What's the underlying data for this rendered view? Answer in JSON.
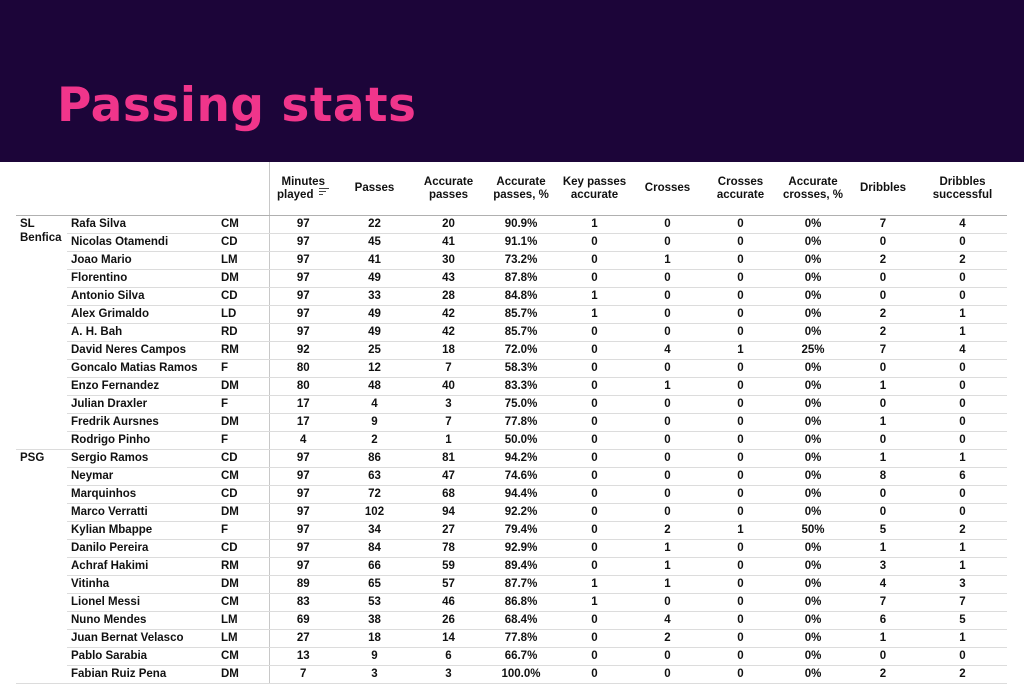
{
  "title": "Passing stats",
  "columns": [
    "Minutes played",
    "Passes",
    "Accurate passes",
    "Accurate passes, %",
    "Key passes accurate",
    "Crosses",
    "Crosses accurate",
    "Accurate crosses, %",
    "Dribbles",
    "Dribbles successful"
  ],
  "groups": [
    {
      "team": "SL Benfica",
      "rows": [
        {
          "player": "Rafa Silva",
          "pos": "CM",
          "stats": [
            "97",
            "22",
            "20",
            "90.9%",
            "1",
            "0",
            "0",
            "0%",
            "7",
            "4"
          ]
        },
        {
          "player": "Nicolas Otamendi",
          "pos": "CD",
          "stats": [
            "97",
            "45",
            "41",
            "91.1%",
            "0",
            "0",
            "0",
            "0%",
            "0",
            "0"
          ]
        },
        {
          "player": "Joao Mario",
          "pos": "LM",
          "stats": [
            "97",
            "41",
            "30",
            "73.2%",
            "0",
            "1",
            "0",
            "0%",
            "2",
            "2"
          ]
        },
        {
          "player": "Florentino",
          "pos": "DM",
          "stats": [
            "97",
            "49",
            "43",
            "87.8%",
            "0",
            "0",
            "0",
            "0%",
            "0",
            "0"
          ]
        },
        {
          "player": "Antonio Silva",
          "pos": "CD",
          "stats": [
            "97",
            "33",
            "28",
            "84.8%",
            "1",
            "0",
            "0",
            "0%",
            "0",
            "0"
          ]
        },
        {
          "player": "Alex Grimaldo",
          "pos": "LD",
          "stats": [
            "97",
            "49",
            "42",
            "85.7%",
            "1",
            "0",
            "0",
            "0%",
            "2",
            "1"
          ]
        },
        {
          "player": "A. H. Bah",
          "pos": "RD",
          "stats": [
            "97",
            "49",
            "42",
            "85.7%",
            "0",
            "0",
            "0",
            "0%",
            "2",
            "1"
          ]
        },
        {
          "player": "David Neres Campos",
          "pos": "RM",
          "stats": [
            "92",
            "25",
            "18",
            "72.0%",
            "0",
            "4",
            "1",
            "25%",
            "7",
            "4"
          ]
        },
        {
          "player": "Goncalo Matias Ramos",
          "pos": "F",
          "stats": [
            "80",
            "12",
            "7",
            "58.3%",
            "0",
            "0",
            "0",
            "0%",
            "0",
            "0"
          ]
        },
        {
          "player": "Enzo Fernandez",
          "pos": "DM",
          "stats": [
            "80",
            "48",
            "40",
            "83.3%",
            "0",
            "1",
            "0",
            "0%",
            "1",
            "0"
          ]
        },
        {
          "player": "Julian Draxler",
          "pos": "F",
          "stats": [
            "17",
            "4",
            "3",
            "75.0%",
            "0",
            "0",
            "0",
            "0%",
            "0",
            "0"
          ]
        },
        {
          "player": "Fredrik Aursnes",
          "pos": "DM",
          "stats": [
            "17",
            "9",
            "7",
            "77.8%",
            "0",
            "0",
            "0",
            "0%",
            "1",
            "0"
          ]
        },
        {
          "player": "Rodrigo Pinho",
          "pos": "F",
          "stats": [
            "4",
            "2",
            "1",
            "50.0%",
            "0",
            "0",
            "0",
            "0%",
            "0",
            "0"
          ]
        }
      ]
    },
    {
      "team": "PSG",
      "rows": [
        {
          "player": "Sergio Ramos",
          "pos": "CD",
          "stats": [
            "97",
            "86",
            "81",
            "94.2%",
            "0",
            "0",
            "0",
            "0%",
            "1",
            "1"
          ]
        },
        {
          "player": "Neymar",
          "pos": "CM",
          "stats": [
            "97",
            "63",
            "47",
            "74.6%",
            "0",
            "0",
            "0",
            "0%",
            "8",
            "6"
          ]
        },
        {
          "player": "Marquinhos",
          "pos": "CD",
          "stats": [
            "97",
            "72",
            "68",
            "94.4%",
            "0",
            "0",
            "0",
            "0%",
            "0",
            "0"
          ]
        },
        {
          "player": "Marco Verratti",
          "pos": "DM",
          "stats": [
            "97",
            "102",
            "94",
            "92.2%",
            "0",
            "0",
            "0",
            "0%",
            "0",
            "0"
          ]
        },
        {
          "player": "Kylian Mbappe",
          "pos": "F",
          "stats": [
            "97",
            "34",
            "27",
            "79.4%",
            "0",
            "2",
            "1",
            "50%",
            "5",
            "2"
          ]
        },
        {
          "player": "Danilo Pereira",
          "pos": "CD",
          "stats": [
            "97",
            "84",
            "78",
            "92.9%",
            "0",
            "1",
            "0",
            "0%",
            "1",
            "1"
          ]
        },
        {
          "player": "Achraf Hakimi",
          "pos": "RM",
          "stats": [
            "97",
            "66",
            "59",
            "89.4%",
            "0",
            "1",
            "0",
            "0%",
            "3",
            "1"
          ]
        },
        {
          "player": "Vitinha",
          "pos": "DM",
          "stats": [
            "89",
            "65",
            "57",
            "87.7%",
            "1",
            "1",
            "0",
            "0%",
            "4",
            "3"
          ]
        },
        {
          "player": "Lionel Messi",
          "pos": "CM",
          "stats": [
            "83",
            "53",
            "46",
            "86.8%",
            "1",
            "0",
            "0",
            "0%",
            "7",
            "7"
          ]
        },
        {
          "player": "Nuno Mendes",
          "pos": "LM",
          "stats": [
            "69",
            "38",
            "26",
            "68.4%",
            "0",
            "4",
            "0",
            "0%",
            "6",
            "5"
          ]
        },
        {
          "player": "Juan Bernat Velasco",
          "pos": "LM",
          "stats": [
            "27",
            "18",
            "14",
            "77.8%",
            "0",
            "2",
            "0",
            "0%",
            "1",
            "1"
          ]
        },
        {
          "player": "Pablo Sarabia",
          "pos": "CM",
          "stats": [
            "13",
            "9",
            "6",
            "66.7%",
            "0",
            "0",
            "0",
            "0%",
            "0",
            "0"
          ]
        },
        {
          "player": "Fabian Ruiz Pena",
          "pos": "DM",
          "stats": [
            "7",
            "3",
            "3",
            "100.0%",
            "0",
            "0",
            "0",
            "0%",
            "2",
            "2"
          ]
        }
      ]
    }
  ]
}
